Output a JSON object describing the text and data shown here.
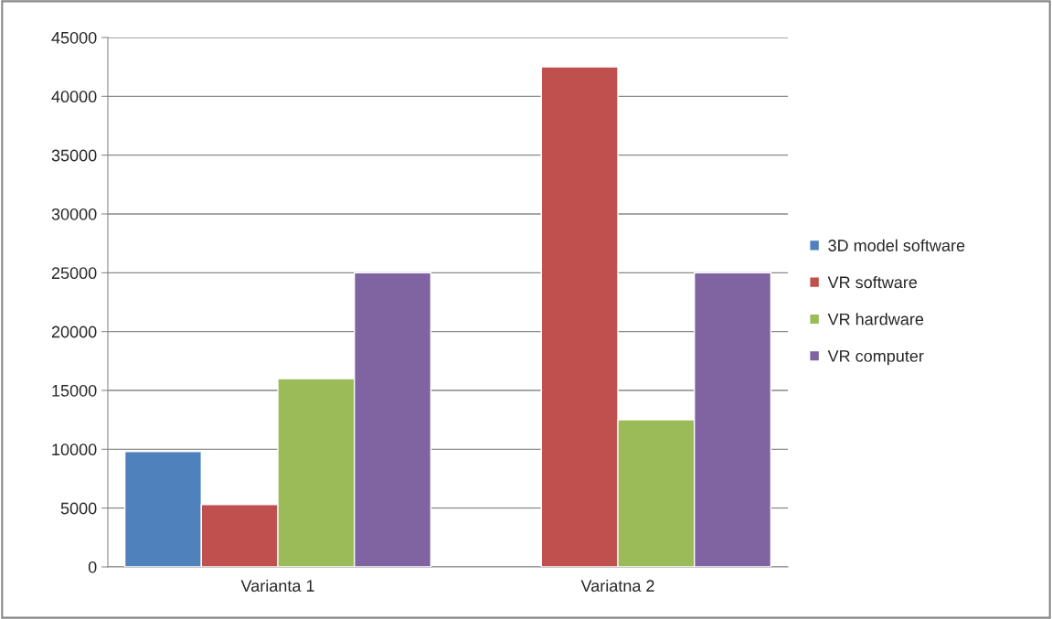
{
  "chart_data": {
    "type": "bar",
    "categories": [
      "Varianta 1",
      "Variatna 2"
    ],
    "series": [
      {
        "name": "3D model software",
        "color": "#4f81bd",
        "values": [
          9800,
          null
        ]
      },
      {
        "name": "VR software",
        "color": "#c0504d",
        "values": [
          5300,
          42500
        ]
      },
      {
        "name": "VR hardware",
        "color": "#9bbb59",
        "values": [
          16000,
          12500
        ]
      },
      {
        "name": "VR computer",
        "color": "#8064a2",
        "values": [
          25000,
          25000
        ]
      }
    ],
    "ylim": [
      0,
      45000
    ],
    "yticks": [
      0,
      5000,
      10000,
      15000,
      20000,
      25000,
      30000,
      35000,
      40000,
      45000
    ],
    "grid": "y",
    "legend": "right"
  }
}
